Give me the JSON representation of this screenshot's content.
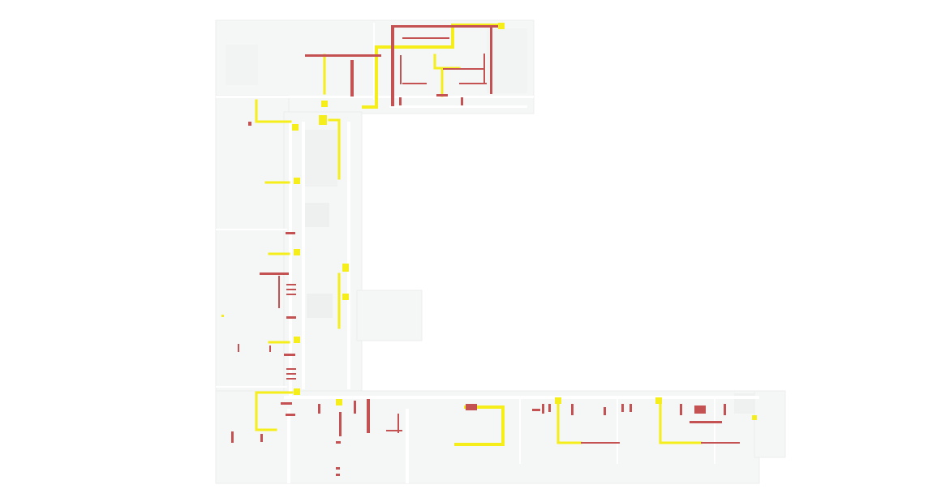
{
  "map": {
    "type": "floor-plan",
    "colors": {
      "background": "#ffffff",
      "floor": "#f5f6f6",
      "floor_shade": "#ebeded",
      "wall": "#ffffff",
      "yellow_route": "#f5ee1a",
      "red_marker": "#c45252"
    },
    "layers": [
      {
        "name": "building-floor",
        "color": "#f5f6f6"
      },
      {
        "name": "yellow-routes",
        "color": "#f5ee1a"
      },
      {
        "name": "red-markers",
        "color": "#c45252"
      }
    ]
  }
}
